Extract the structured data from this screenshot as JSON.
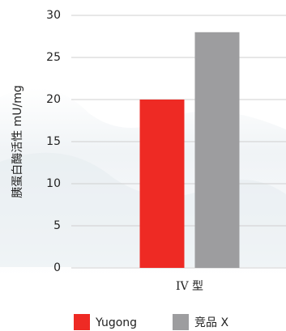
{
  "chart_data": {
    "type": "bar",
    "y_label": "胰蛋白酶活性 mU/mg",
    "categories": [
      "IV 型"
    ],
    "series": [
      {
        "name": "Yugong",
        "color": "#ee2a24",
        "values": [
          20
        ]
      },
      {
        "name": "竞品 X",
        "color": "#9d9d9f",
        "values": [
          28
        ]
      }
    ],
    "ylim": [
      0,
      30
    ],
    "yticks": [
      0,
      5,
      10,
      15,
      20,
      25,
      30
    ],
    "grid": true,
    "legend": "bottom"
  }
}
